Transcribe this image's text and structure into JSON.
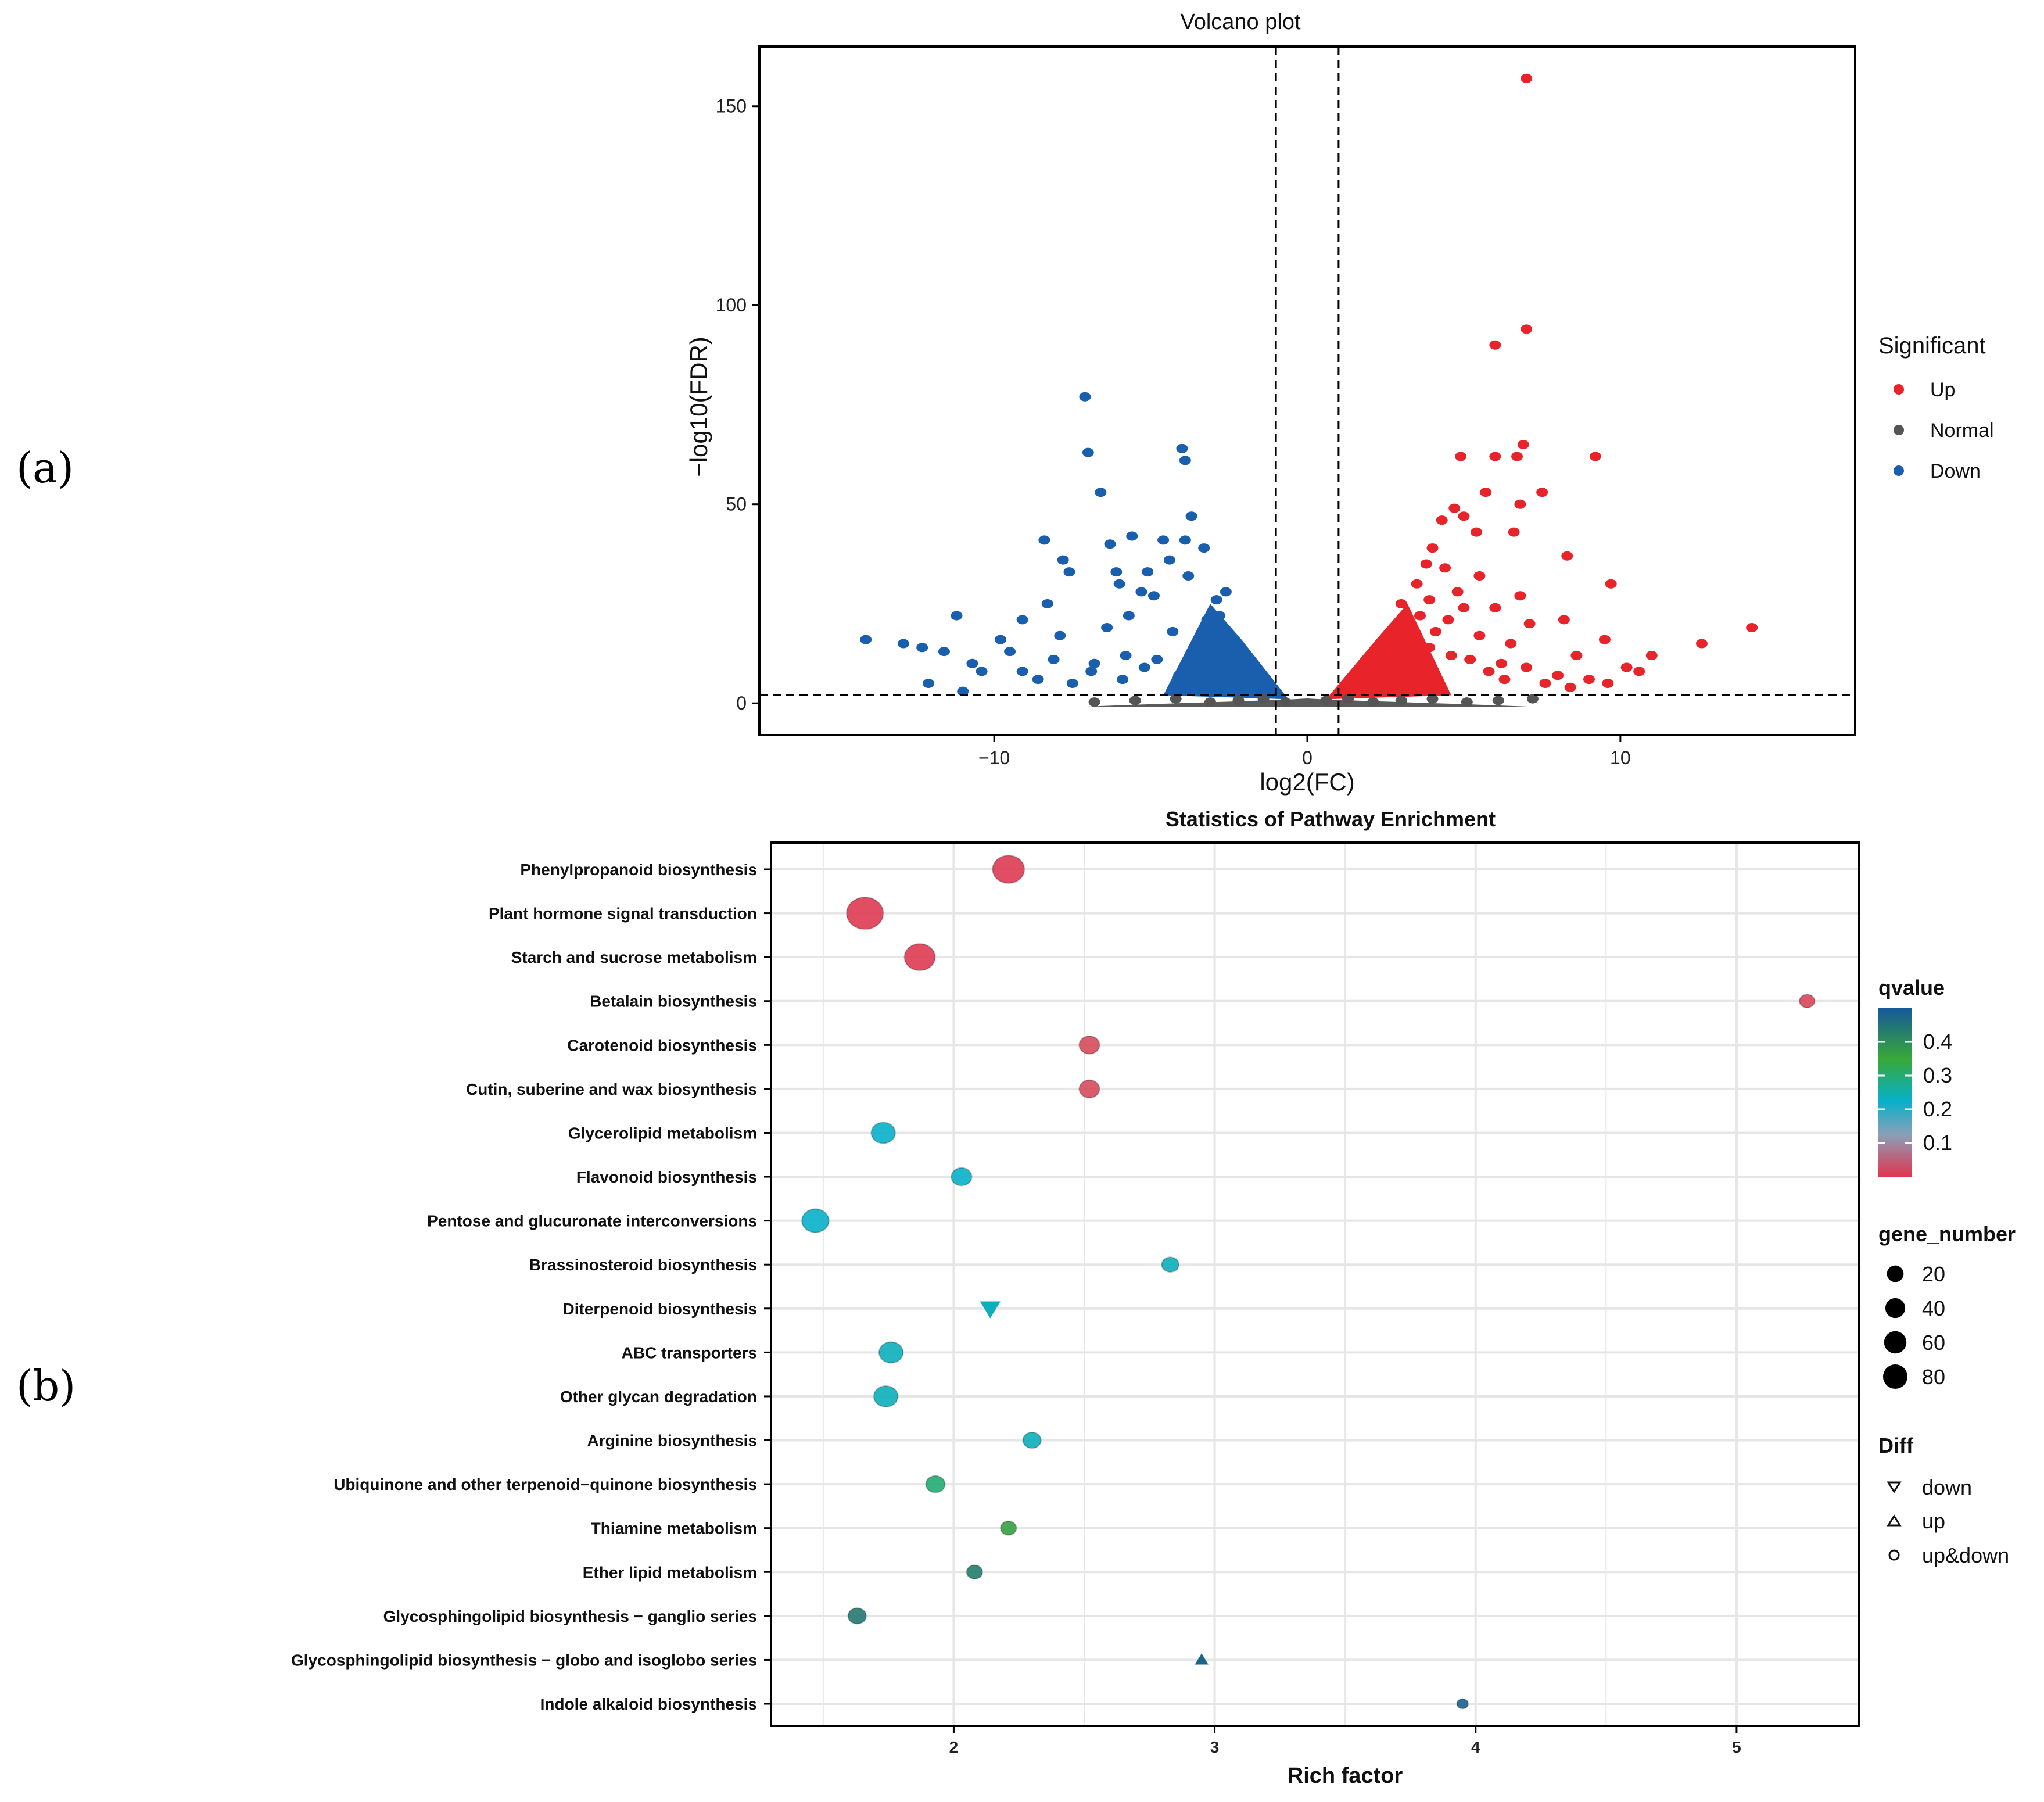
{
  "figure": {
    "panel_a_label": "(a)",
    "panel_b_label": "(b)"
  },
  "chart_data": [
    {
      "type": "scatter",
      "title": "Volcano plot",
      "xlabel": "log2(FC)",
      "ylabel": "−log10(FDR)",
      "xlim": [
        -17.5,
        17.5
      ],
      "ylim": [
        -8,
        165
      ],
      "xticks": [
        {
          "value": -10,
          "label": "−10"
        },
        {
          "value": 0,
          "label": "0"
        },
        {
          "value": 10,
          "label": "10"
        }
      ],
      "yticks": [
        {
          "value": 0,
          "label": "0"
        },
        {
          "value": 50,
          "label": "50"
        },
        {
          "value": 100,
          "label": "100"
        },
        {
          "value": 150,
          "label": "150"
        }
      ],
      "thresholds": {
        "vertical": [
          -1,
          1
        ],
        "horizontal": 2
      },
      "legend": {
        "title": "Significant",
        "position": "right",
        "entries": [
          {
            "label": "Up",
            "color": "#e8242a"
          },
          {
            "label": "Normal",
            "color": "#555555"
          },
          {
            "label": "Down",
            "color": "#1a5fae"
          }
        ]
      },
      "series": [
        {
          "name": "Up",
          "color": "#e8242a",
          "points": [
            [
              7.0,
              157
            ],
            [
              7.0,
              94
            ],
            [
              6.0,
              90
            ],
            [
              6.9,
              65
            ],
            [
              6.7,
              62
            ],
            [
              6.0,
              62
            ],
            [
              9.2,
              62
            ],
            [
              4.9,
              62
            ],
            [
              5.7,
              53
            ],
            [
              7.5,
              53
            ],
            [
              6.8,
              50
            ],
            [
              4.7,
              49
            ],
            [
              5.0,
              47
            ],
            [
              4.3,
              46
            ],
            [
              5.4,
              43
            ],
            [
              6.6,
              43
            ],
            [
              4.0,
              39
            ],
            [
              8.3,
              37
            ],
            [
              3.8,
              35
            ],
            [
              4.4,
              34
            ],
            [
              5.5,
              32
            ],
            [
              9.7,
              30
            ],
            [
              3.5,
              30
            ],
            [
              4.8,
              28
            ],
            [
              6.8,
              27
            ],
            [
              3.9,
              26
            ],
            [
              5.0,
              24
            ],
            [
              6.0,
              24
            ],
            [
              8.2,
              21
            ],
            [
              4.5,
              21
            ],
            [
              7.1,
              20
            ],
            [
              14.2,
              19
            ],
            [
              5.5,
              17
            ],
            [
              9.5,
              16
            ],
            [
              6.5,
              15
            ],
            [
              12.6,
              15
            ],
            [
              11.0,
              12
            ],
            [
              8.6,
              12
            ],
            [
              10.2,
              9
            ],
            [
              10.6,
              8
            ],
            [
              3.0,
              25
            ],
            [
              3.6,
              22
            ],
            [
              3.2,
              19
            ],
            [
              4.1,
              18
            ],
            [
              2.6,
              16
            ],
            [
              3.9,
              14
            ],
            [
              4.6,
              12
            ],
            [
              5.2,
              11
            ],
            [
              6.2,
              10
            ],
            [
              7.0,
              9
            ],
            [
              8.0,
              7
            ],
            [
              9.0,
              6
            ],
            [
              2.2,
              12
            ],
            [
              2.8,
              10
            ],
            [
              3.3,
              9
            ],
            [
              5.8,
              8
            ],
            [
              6.3,
              6
            ],
            [
              7.6,
              5
            ],
            [
              8.4,
              4
            ],
            [
              9.6,
              5
            ]
          ]
        },
        {
          "name": "Down",
          "color": "#1a5fae",
          "points": [
            [
              -7.1,
              77
            ],
            [
              -4.0,
              64
            ],
            [
              -7.0,
              63
            ],
            [
              -3.9,
              61
            ],
            [
              -6.6,
              53
            ],
            [
              -3.7,
              47
            ],
            [
              -5.6,
              42
            ],
            [
              -4.6,
              41
            ],
            [
              -8.4,
              41
            ],
            [
              -3.9,
              41
            ],
            [
              -6.3,
              40
            ],
            [
              -3.3,
              39
            ],
            [
              -7.8,
              36
            ],
            [
              -4.4,
              36
            ],
            [
              -5.1,
              33
            ],
            [
              -6.1,
              33
            ],
            [
              -7.6,
              33
            ],
            [
              -3.8,
              32
            ],
            [
              -2.6,
              28
            ],
            [
              -6.0,
              30
            ],
            [
              -5.3,
              28
            ],
            [
              -8.3,
              25
            ],
            [
              -4.9,
              27
            ],
            [
              -2.9,
              26
            ],
            [
              -11.2,
              22
            ],
            [
              -5.7,
              22
            ],
            [
              -2.8,
              22
            ],
            [
              -6.4,
              19
            ],
            [
              -9.1,
              21
            ],
            [
              -14.1,
              16
            ],
            [
              -12.9,
              15
            ],
            [
              -9.8,
              16
            ],
            [
              -7.9,
              17
            ],
            [
              -3.2,
              21
            ],
            [
              -4.3,
              18
            ],
            [
              -12.3,
              14
            ],
            [
              -11.6,
              13
            ],
            [
              -9.5,
              13
            ],
            [
              -10.7,
              10
            ],
            [
              -8.1,
              11
            ],
            [
              -6.8,
              10
            ],
            [
              -5.8,
              12
            ],
            [
              -10.4,
              8
            ],
            [
              -9.1,
              8
            ],
            [
              -8.6,
              6
            ],
            [
              -12.1,
              5
            ],
            [
              -11.0,
              3
            ],
            [
              -6.9,
              8
            ],
            [
              -5.2,
              9
            ],
            [
              -7.5,
              5
            ],
            [
              -3.5,
              15
            ],
            [
              -4.8,
              11
            ],
            [
              -2.2,
              14
            ],
            [
              -3.0,
              17
            ],
            [
              -2.4,
              9
            ],
            [
              -4.1,
              7
            ],
            [
              -5.9,
              6
            ],
            [
              -3.6,
              5
            ],
            [
              -2.7,
              6
            ],
            [
              -1.9,
              10
            ]
          ]
        }
      ]
    },
    {
      "type": "scatter",
      "title": "Statistics of Pathway Enrichment",
      "xlabel": "Rich factor",
      "ylabel": "",
      "xlim": [
        1.3,
        5.47
      ],
      "xticks": [
        2,
        3,
        4,
        5
      ],
      "categories": [
        "Phenylpropanoid biosynthesis",
        "Plant hormone signal transduction",
        "Starch and sucrose metabolism",
        "Betalain biosynthesis",
        "Carotenoid biosynthesis",
        "Cutin, suberine and wax biosynthesis",
        "Glycerolipid metabolism",
        "Flavonoid biosynthesis",
        "Pentose and glucuronate interconversions",
        "Brassinosteroid biosynthesis",
        "Diterpenoid biosynthesis",
        "ABC transporters",
        "Other glycan degradation",
        "Arginine biosynthesis",
        "Ubiquinone and other terpenoid−quinone biosynthesis",
        "Thiamine metabolism",
        "Ether lipid metabolism",
        "Glycosphingolipid biosynthesis − ganglio series",
        "Glycosphingolipid biosynthesis − globo and isoglobo series",
        "Indole alkaloid biosynthesis"
      ],
      "points": [
        {
          "pathway": "Phenylpropanoid biosynthesis",
          "rich_factor": 2.21,
          "gene_number": 55,
          "qvalue": 0.01,
          "diff": "up&down"
        },
        {
          "pathway": "Plant hormone signal transduction",
          "rich_factor": 1.66,
          "gene_number": 80,
          "qvalue": 0.01,
          "diff": "up&down"
        },
        {
          "pathway": "Starch and sucrose metabolism",
          "rich_factor": 1.87,
          "gene_number": 50,
          "qvalue": 0.01,
          "diff": "up&down"
        },
        {
          "pathway": "Betalain biosynthesis",
          "rich_factor": 5.27,
          "gene_number": 5,
          "qvalue": 0.03,
          "diff": "up&down"
        },
        {
          "pathway": "Carotenoid biosynthesis",
          "rich_factor": 2.52,
          "gene_number": 15,
          "qvalue": 0.04,
          "diff": "up&down"
        },
        {
          "pathway": "Cutin, suberine and wax biosynthesis",
          "rich_factor": 2.52,
          "gene_number": 15,
          "qvalue": 0.04,
          "diff": "up&down"
        },
        {
          "pathway": "Glycerolipid metabolism",
          "rich_factor": 1.73,
          "gene_number": 25,
          "qvalue": 0.2,
          "diff": "up&down"
        },
        {
          "pathway": "Flavonoid biosynthesis",
          "rich_factor": 2.03,
          "gene_number": 15,
          "qvalue": 0.2,
          "diff": "up&down"
        },
        {
          "pathway": "Pentose and glucuronate interconversions",
          "rich_factor": 1.47,
          "gene_number": 35,
          "qvalue": 0.2,
          "diff": "up&down"
        },
        {
          "pathway": "Brassinosteroid biosynthesis",
          "rich_factor": 2.83,
          "gene_number": 8,
          "qvalue": 0.21,
          "diff": "up&down"
        },
        {
          "pathway": "Diterpenoid biosynthesis",
          "rich_factor": 2.14,
          "gene_number": 15,
          "qvalue": 0.21,
          "diff": "down"
        },
        {
          "pathway": "ABC transporters",
          "rich_factor": 1.76,
          "gene_number": 25,
          "qvalue": 0.21,
          "diff": "up&down"
        },
        {
          "pathway": "Other glycan degradation",
          "rich_factor": 1.74,
          "gene_number": 25,
          "qvalue": 0.21,
          "diff": "up&down"
        },
        {
          "pathway": "Arginine biosynthesis",
          "rich_factor": 2.3,
          "gene_number": 10,
          "qvalue": 0.21,
          "diff": "up&down"
        },
        {
          "pathway": "Ubiquinone and other terpenoid−quinone biosynthesis",
          "rich_factor": 1.93,
          "gene_number": 12,
          "qvalue": 0.26,
          "diff": "up&down"
        },
        {
          "pathway": "Thiamine metabolism",
          "rich_factor": 2.21,
          "gene_number": 6,
          "qvalue": 0.32,
          "diff": "up&down"
        },
        {
          "pathway": "Ether lipid metabolism",
          "rich_factor": 2.08,
          "gene_number": 6,
          "qvalue": 0.41,
          "diff": "up&down"
        },
        {
          "pathway": "Glycosphingolipid biosynthesis − ganglio series",
          "rich_factor": 1.63,
          "gene_number": 10,
          "qvalue": 0.42,
          "diff": "up&down"
        },
        {
          "pathway": "Glycosphingolipid biosynthesis − globo and isoglobo series",
          "rich_factor": 2.95,
          "gene_number": 3,
          "qvalue": 0.47,
          "diff": "up"
        },
        {
          "pathway": "Indole alkaloid biosynthesis",
          "rich_factor": 3.95,
          "gene_number": 1,
          "qvalue": 0.48,
          "diff": "up&down"
        }
      ],
      "legend": {
        "qvalue_title": "qvalue",
        "qvalue_ticks": [
          "0.4",
          "0.3",
          "0.2",
          "0.1"
        ],
        "qvalue_tick_values": [
          0.4,
          0.3,
          0.2,
          0.1
        ],
        "qvalue_range": [
          0,
          0.5
        ],
        "qvalue_colors": [
          "#e0364f",
          "#07b0c9",
          "#38a838",
          "#16599a"
        ],
        "gene_title": "gene_number",
        "gene_entries": [
          {
            "label": "20",
            "value": 20
          },
          {
            "label": "40",
            "value": 40
          },
          {
            "label": "60",
            "value": 60
          },
          {
            "label": "80",
            "value": 80
          }
        ],
        "diff_title": "Diff",
        "diff_entries": [
          {
            "label": "down",
            "shape": "triangle-down"
          },
          {
            "label": "up",
            "shape": "triangle-up"
          },
          {
            "label": "up&down",
            "shape": "circle"
          }
        ]
      }
    }
  ]
}
